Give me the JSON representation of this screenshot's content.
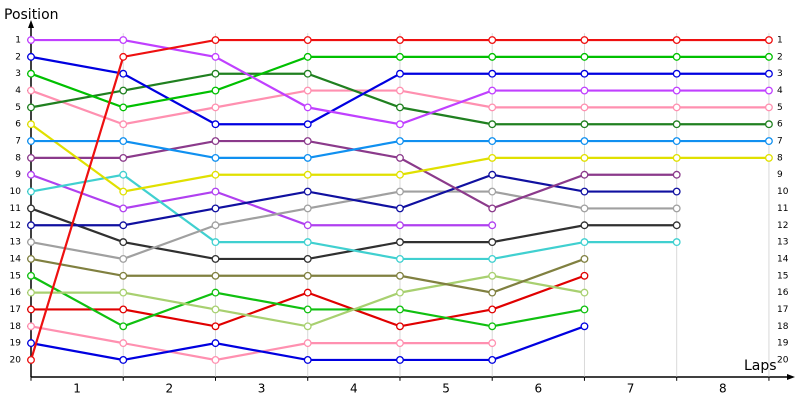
{
  "chart_data": {
    "type": "line",
    "title": "Position",
    "x_label": "Laps",
    "x": [
      0,
      1,
      2,
      3,
      4,
      5,
      6,
      7,
      8
    ],
    "xlim": [
      0,
      8.25
    ],
    "xticks": [
      {
        "value": 0.5,
        "label": "1"
      },
      {
        "value": 1.5,
        "label": "2"
      },
      {
        "value": 2.5,
        "label": "3"
      },
      {
        "value": 3.5,
        "label": "4"
      },
      {
        "value": 4.5,
        "label": "5"
      },
      {
        "value": 5.5,
        "label": "6"
      },
      {
        "value": 6.5,
        "label": "7"
      },
      {
        "value": 7.5,
        "label": "8"
      }
    ],
    "ylim": [
      21,
      0
    ],
    "yticks": [
      1,
      2,
      3,
      4,
      5,
      6,
      7,
      8,
      9,
      10,
      11,
      12,
      13,
      14,
      15,
      16,
      17,
      18,
      19,
      20
    ],
    "grid": true,
    "series": [
      {
        "color": "#b040f0",
        "values": [
          9,
          11,
          10,
          12,
          12,
          12,
          null,
          null,
          null
        ]
      },
      {
        "color": "#ff90b0",
        "values": [
          18,
          19,
          20,
          19,
          19,
          19,
          null,
          null,
          null
        ]
      },
      {
        "color": "#0000e0",
        "values": [
          19,
          20,
          19,
          20,
          20,
          20,
          18,
          null,
          null
        ]
      },
      {
        "color": "#e00000",
        "values": [
          17,
          17,
          18,
          16,
          18,
          17,
          15,
          null,
          null
        ]
      },
      {
        "color": "#10c010",
        "values": [
          15,
          18,
          16,
          17,
          17,
          18,
          17,
          null,
          null
        ]
      },
      {
        "color": "#a8d070",
        "values": [
          16,
          16,
          17,
          18,
          16,
          15,
          16,
          null,
          null
        ]
      },
      {
        "color": "#808040",
        "values": [
          14,
          15,
          15,
          15,
          15,
          16,
          14,
          null,
          null
        ]
      },
      {
        "color": "#303030",
        "values": [
          11,
          13,
          14,
          14,
          13,
          13,
          12,
          12,
          null
        ]
      },
      {
        "color": "#40d0d0",
        "values": [
          10,
          9,
          13,
          13,
          14,
          14,
          13,
          13,
          null
        ]
      },
      {
        "color": "#a0a0a0",
        "values": [
          13,
          14,
          12,
          11,
          10,
          10,
          11,
          11,
          null
        ]
      },
      {
        "color": "#1010a0",
        "values": [
          12,
          12,
          11,
          10,
          11,
          9,
          10,
          10,
          null
        ]
      },
      {
        "color": "#8b3a8b",
        "values": [
          8,
          8,
          7,
          7,
          8,
          11,
          9,
          9,
          null
        ]
      },
      {
        "color": "#e0e000",
        "values": [
          6,
          10,
          9,
          9,
          9,
          8,
          8,
          8,
          8
        ]
      },
      {
        "color": "#1090f0",
        "values": [
          7,
          7,
          8,
          8,
          7,
          7,
          7,
          7,
          7
        ]
      },
      {
        "color": "#ff90b0",
        "values": [
          4,
          6,
          5,
          4,
          4,
          5,
          5,
          5,
          5
        ]
      },
      {
        "color": "#208020",
        "values": [
          5,
          4,
          3,
          3,
          5,
          6,
          6,
          6,
          6
        ]
      },
      {
        "color": "#0000e0",
        "values": [
          2,
          3,
          6,
          6,
          3,
          3,
          3,
          3,
          3
        ]
      },
      {
        "color": "#00c000",
        "values": [
          3,
          5,
          4,
          2,
          2,
          2,
          2,
          2,
          2
        ]
      },
      {
        "color": "#c040ff",
        "values": [
          1,
          1,
          2,
          5,
          6,
          4,
          4,
          4,
          4
        ]
      },
      {
        "color": "#ee1010",
        "values": [
          20,
          2,
          1,
          1,
          1,
          1,
          1,
          1,
          1
        ]
      }
    ]
  }
}
